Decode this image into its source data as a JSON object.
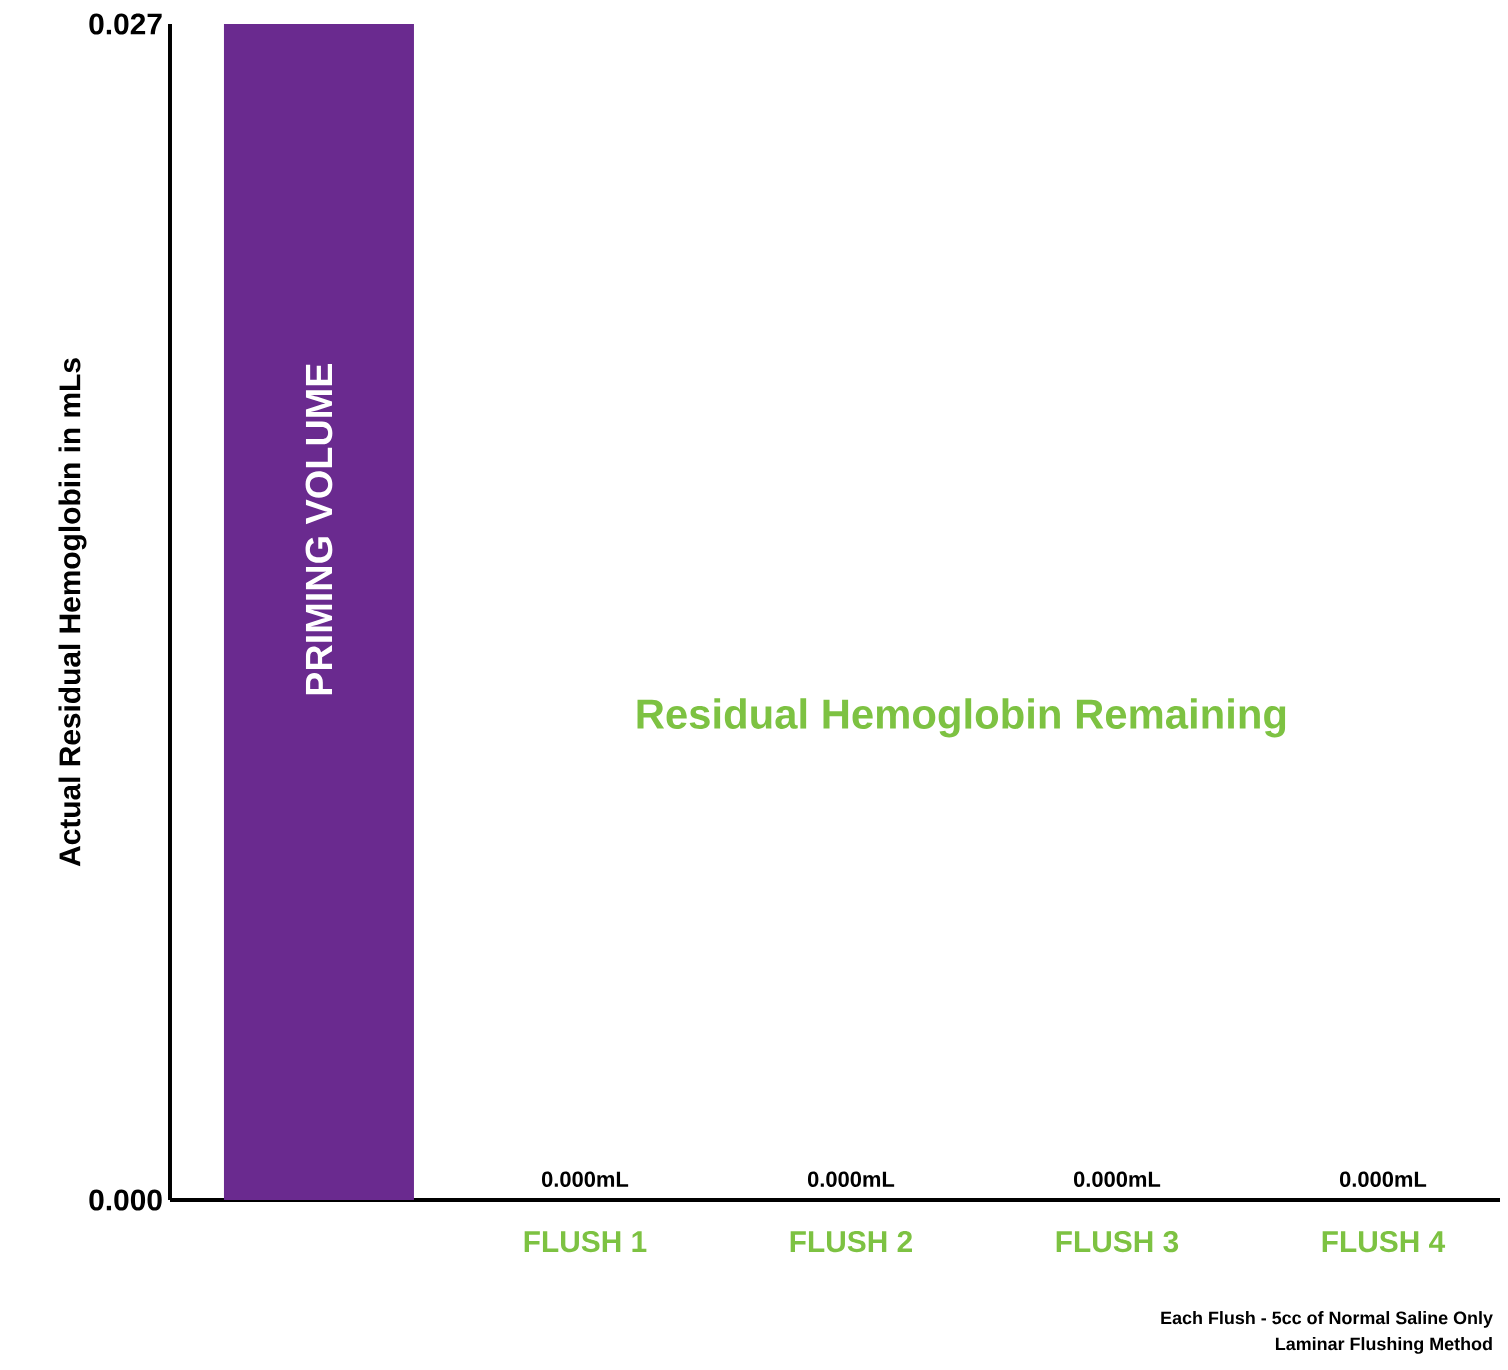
{
  "chart_data": {
    "type": "bar",
    "ylabel": "Actual Residual Hemoglobin in mLs",
    "categories": [
      "PRIMING VOLUME",
      "FLUSH 1",
      "FLUSH 2",
      "FLUSH 3",
      "FLUSH 4"
    ],
    "values": [
      0.027,
      0,
      0,
      0,
      0
    ],
    "value_labels": [
      null,
      "0.000mL",
      "0.000mL",
      "0.000mL",
      "0.000mL"
    ],
    "color": "#6a2a8f",
    "ylim": [
      0,
      0.027
    ],
    "yticks": [
      {
        "value": 0,
        "label": "0.000"
      },
      0.027
    ],
    "annotations": [
      "Residual Hemoglobin Remaining",
      "Each Flush - 5cc of Normal Saline Only",
      "Laminar Flushing Method"
    ]
  }
}
